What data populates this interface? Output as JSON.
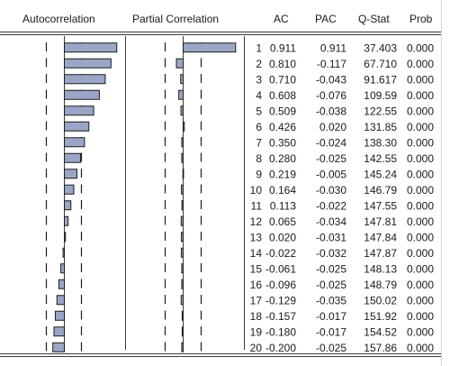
{
  "chart_data": {
    "type": "table",
    "columns": {
      "autocorrelation": "Autocorrelation",
      "partial_correlation": "Partial Correlation",
      "lag": "",
      "ac": "AC",
      "pac": "PAC",
      "qstat": "Q-Stat",
      "prob": "Prob"
    },
    "rows": [
      {
        "lag": "1",
        "ac": "0.911",
        "pac": "0.911",
        "qstat": "37.403",
        "prob": "0.000"
      },
      {
        "lag": "2",
        "ac": "0.810",
        "pac": "-0.117",
        "qstat": "67.710",
        "prob": "0.000"
      },
      {
        "lag": "3",
        "ac": "0.710",
        "pac": "-0.043",
        "qstat": "91.617",
        "prob": "0.000"
      },
      {
        "lag": "4",
        "ac": "0.608",
        "pac": "-0.076",
        "qstat": "109.59",
        "prob": "0.000"
      },
      {
        "lag": "5",
        "ac": "0.509",
        "pac": "-0.038",
        "qstat": "122.55",
        "prob": "0.000"
      },
      {
        "lag": "6",
        "ac": "0.426",
        "pac": "0.020",
        "qstat": "131.85",
        "prob": "0.000"
      },
      {
        "lag": "7",
        "ac": "0.350",
        "pac": "-0.024",
        "qstat": "138.30",
        "prob": "0.000"
      },
      {
        "lag": "8",
        "ac": "0.280",
        "pac": "-0.025",
        "qstat": "142.55",
        "prob": "0.000"
      },
      {
        "lag": "9",
        "ac": "0.219",
        "pac": "-0.005",
        "qstat": "145.24",
        "prob": "0.000"
      },
      {
        "lag": "10",
        "ac": "0.164",
        "pac": "-0.030",
        "qstat": "146.79",
        "prob": "0.000"
      },
      {
        "lag": "11",
        "ac": "0.113",
        "pac": "-0.022",
        "qstat": "147.55",
        "prob": "0.000"
      },
      {
        "lag": "12",
        "ac": "0.065",
        "pac": "-0.034",
        "qstat": "147.81",
        "prob": "0.000"
      },
      {
        "lag": "13",
        "ac": "0.020",
        "pac": "-0.031",
        "qstat": "147.84",
        "prob": "0.000"
      },
      {
        "lag": "14",
        "ac": "-0.022",
        "pac": "-0.032",
        "qstat": "147.87",
        "prob": "0.000"
      },
      {
        "lag": "15",
        "ac": "-0.061",
        "pac": "-0.025",
        "qstat": "148.13",
        "prob": "0.000"
      },
      {
        "lag": "16",
        "ac": "-0.096",
        "pac": "-0.025",
        "qstat": "148.79",
        "prob": "0.000"
      },
      {
        "lag": "17",
        "ac": "-0.129",
        "pac": "-0.035",
        "qstat": "150.02",
        "prob": "0.000"
      },
      {
        "lag": "18",
        "ac": "-0.157",
        "pac": "-0.017",
        "qstat": "151.92",
        "prob": "0.000"
      },
      {
        "lag": "19",
        "ac": "-0.180",
        "pac": "-0.017",
        "qstat": "154.52",
        "prob": "0.000"
      },
      {
        "lag": "20",
        "ac": "-0.200",
        "pac": "-0.025",
        "qstat": "157.86",
        "prob": "0.000"
      }
    ],
    "bar_range": [
      -1,
      1
    ],
    "colors": {
      "bar_fill": "#9aa6c6",
      "bar_stroke": "#1c1c1c",
      "rule": "#3a3a3a",
      "band_line": "#1c1c1c"
    }
  }
}
